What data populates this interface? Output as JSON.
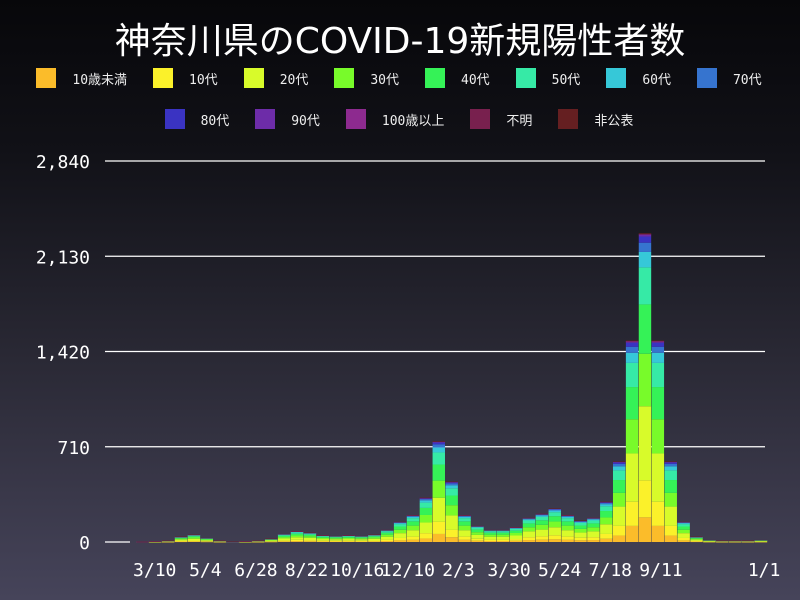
{
  "chart_data": {
    "type": "bar",
    "stacked": true,
    "title": "神奈川県のCOVID-19新規陽性者数",
    "xlabel": "",
    "ylabel": "",
    "ylim": [
      0,
      2840
    ],
    "yticks": [
      0,
      710,
      1420,
      2130,
      2840
    ],
    "ytick_labels": [
      "0",
      "710",
      "1,420",
      "2,130",
      "2,840"
    ],
    "xtick_labels": [
      "3/10",
      "5/4",
      "6/28",
      "8/22",
      "10/16",
      "12/10",
      "2/3",
      "3/30",
      "5/24",
      "7/18",
      "9/11",
      "1/1"
    ],
    "xtick_dates": [
      "2020-03-10",
      "2020-05-04",
      "2020-06-28",
      "2020-08-22",
      "2020-10-16",
      "2020-12-10",
      "2021-02-03",
      "2021-03-30",
      "2021-05-24",
      "2021-07-18",
      "2021-09-11",
      "2022-01-01"
    ],
    "x_range": [
      "2020-01-16",
      "2022-01-02"
    ],
    "grid": true,
    "legend_position": "top",
    "categories": [
      "2020-01-21",
      "2020-02-04",
      "2020-02-18",
      "2020-03-03",
      "2020-03-17",
      "2020-03-31",
      "2020-04-14",
      "2020-04-28",
      "2020-05-12",
      "2020-05-26",
      "2020-06-09",
      "2020-06-23",
      "2020-07-07",
      "2020-07-21",
      "2020-08-04",
      "2020-08-18",
      "2020-09-01",
      "2020-09-15",
      "2020-09-29",
      "2020-10-13",
      "2020-10-27",
      "2020-11-10",
      "2020-11-24",
      "2020-12-08",
      "2020-12-22",
      "2021-01-05",
      "2021-01-19",
      "2021-02-02",
      "2021-02-16",
      "2021-03-02",
      "2021-03-16",
      "2021-03-30",
      "2021-04-13",
      "2021-04-27",
      "2021-05-11",
      "2021-05-25",
      "2021-06-08",
      "2021-06-22",
      "2021-07-06",
      "2021-07-20",
      "2021-08-03",
      "2021-08-17",
      "2021-08-31",
      "2021-09-14",
      "2021-09-28",
      "2021-10-12",
      "2021-10-26",
      "2021-11-09",
      "2021-11-23",
      "2021-12-07",
      "2021-12-21"
    ],
    "totals": [
      0,
      0,
      2,
      5,
      10,
      40,
      55,
      30,
      10,
      3,
      5,
      10,
      25,
      60,
      80,
      70,
      50,
      45,
      50,
      45,
      55,
      90,
      150,
      200,
      330,
      750,
      450,
      200,
      120,
      90,
      90,
      110,
      180,
      210,
      250,
      200,
      160,
      180,
      300,
      600,
      1500,
      2300,
      1500,
      600,
      150,
      40,
      15,
      10,
      10,
      10,
      15
    ],
    "series": [
      {
        "name": "10歳未満",
        "color": "#fbbc2a",
        "share": 0.08
      },
      {
        "name": "10代",
        "color": "#fbf12a",
        "share": 0.12
      },
      {
        "name": "20代",
        "color": "#d8fb2a",
        "share": 0.24
      },
      {
        "name": "30代",
        "color": "#78fb2a",
        "share": 0.17
      },
      {
        "name": "40代",
        "color": "#35f257",
        "share": 0.16
      },
      {
        "name": "50代",
        "color": "#36eaa6",
        "share": 0.12
      },
      {
        "name": "60代",
        "color": "#36c8d8",
        "share": 0.05
      },
      {
        "name": "70代",
        "color": "#3674cf",
        "share": 0.03
      },
      {
        "name": "80代",
        "color": "#3a33c2",
        "share": 0.02
      },
      {
        "name": "90代",
        "color": "#6d2ca8",
        "share": 0.006
      },
      {
        "name": "100歳以上",
        "color": "#8d2a8f",
        "share": 0.001
      },
      {
        "name": "不明",
        "color": "#78204e",
        "share": 0.002
      },
      {
        "name": "非公表",
        "color": "#651f21",
        "share": 0.002
      }
    ]
  }
}
